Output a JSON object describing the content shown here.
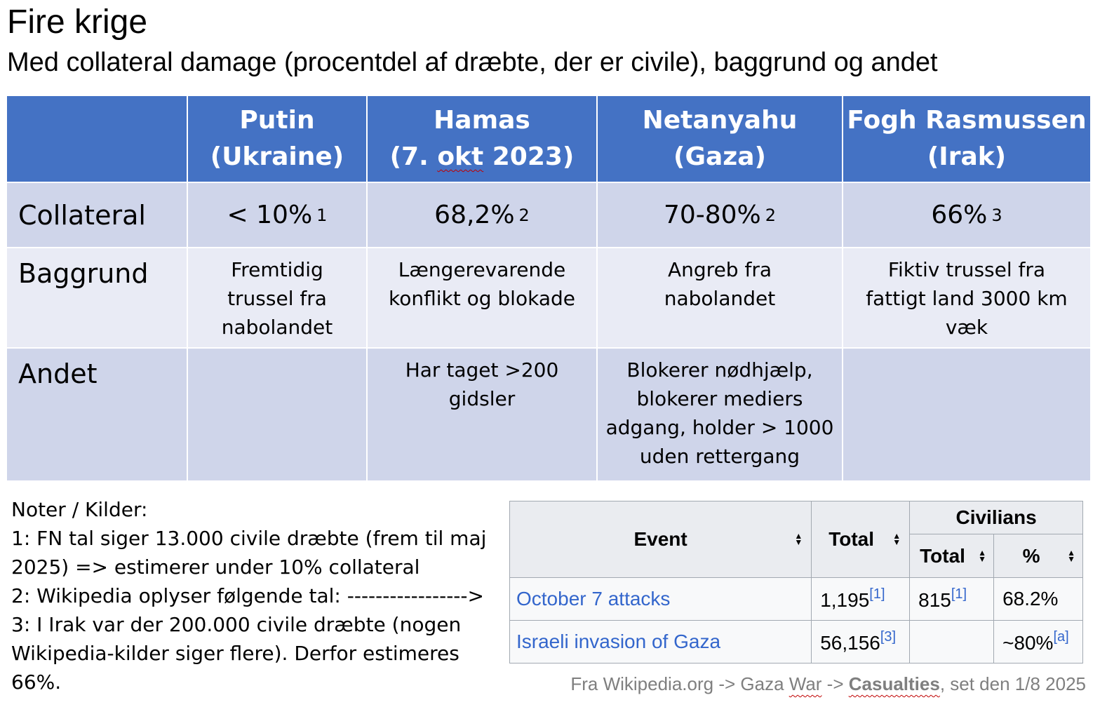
{
  "title": "Fire krige",
  "subtitle": "Med collateral damage (procentdel af dræbte, der er civile), baggrund og andet",
  "table": {
    "columns": [
      {
        "line1": "Putin",
        "line2": "(Ukraine)"
      },
      {
        "line1": "Hamas",
        "line2a": "(7. ",
        "line2b": "okt",
        "line2c": " 2023)"
      },
      {
        "line1": "Netanyahu",
        "line2": "(Gaza)"
      },
      {
        "line1": "Fogh Rasmussen",
        "line2": "(Irak)"
      }
    ],
    "row_labels": {
      "collateral": "Collateral",
      "baggrund": "Baggrund",
      "andet": "Andet"
    },
    "collateral": [
      {
        "value": "< 10%",
        "note": "1"
      },
      {
        "value": "68,2%",
        "note": "2"
      },
      {
        "value": "70-80%",
        "note": "2"
      },
      {
        "value": "66%",
        "note": "3"
      }
    ],
    "baggrund": [
      [
        "Fremtidig",
        "trussel fra",
        "nabolandet"
      ],
      [
        "Længerevarende",
        "konflikt og blokade"
      ],
      [
        "Angreb fra",
        "nabolandet"
      ],
      [
        "Fiktiv trussel fra",
        "fattigt land 3000 km",
        "væk"
      ]
    ],
    "andet": [
      [],
      [
        "Har taget >200",
        "gidsler"
      ],
      [
        "Blokerer nødhjælp,",
        "blokerer mediers",
        "adgang, holder > 1000",
        "uden rettergang"
      ],
      []
    ]
  },
  "notes": [
    "Noter / Kilder:",
    "1: FN tal siger 13.000 civile dræbte (frem til maj",
    "2025) => estimerer under 10% collateral",
    "2: Wikipedia oplyser følgende tal: ----------------->",
    "3: I Irak var der 200.000 civile dræbte (nogen",
    "Wikipedia-kilder siger flere). Derfor estimeres",
    "66%."
  ],
  "wiki_table": {
    "headers": {
      "event": "Event",
      "total": "Total",
      "civilians": "Civilians",
      "civ_total": "Total",
      "civ_pct": "%"
    },
    "sort_icon": "sort-arrows-icon",
    "rows": [
      {
        "event": "October 7 attacks",
        "total": "1,195",
        "total_ref": "[1]",
        "civ_total": "815",
        "civ_total_ref": "[1]",
        "civ_pct": "68.2%",
        "civ_pct_ref": ""
      },
      {
        "event": "Israeli invasion of Gaza",
        "total": "56,156",
        "total_ref": "[3]",
        "civ_total": "",
        "civ_total_ref": "",
        "civ_pct": "~80%",
        "civ_pct_ref": "[a]"
      }
    ]
  },
  "caption": {
    "part1": "Fra Wikipedia.org -> Gaza ",
    "war": "War",
    "part2": " -> ",
    "casualties": "Casualties",
    "part3": ", set den 1/8 2025"
  },
  "colors": {
    "header_bg": "#4472c4",
    "row_dark": "#cfd5ea",
    "row_light": "#e9ebf5",
    "link": "#3366cc"
  }
}
